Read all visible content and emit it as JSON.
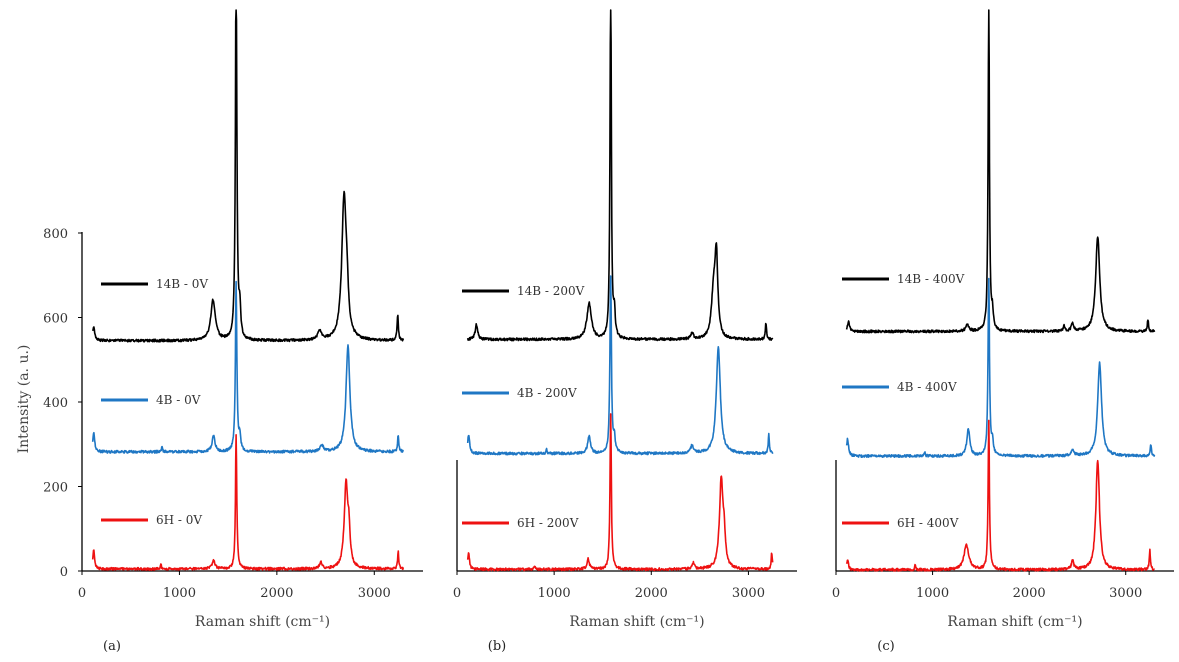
{
  "figure": {
    "y_axis_title": "Intensity (a. u.)"
  },
  "colors": {
    "14B": "#000000",
    "4B": "#1f77c4",
    "6H": "#ee1111"
  },
  "chart_data": [
    {
      "type": "line",
      "panel_label": "(a)",
      "xlabel": "Raman shift (cm⁻¹)",
      "ylabel": "Intensity (a. u.)",
      "xlim": [
        0,
        3500
      ],
      "ylim": [
        0,
        800
      ],
      "x_ticks": [
        0,
        1000,
        2000,
        3000
      ],
      "y_ticks": [
        0,
        200,
        400,
        600,
        800
      ],
      "grid": false,
      "legend_position": "left",
      "x_range": [
        110,
        3300
      ],
      "series": [
        {
          "name": "14B - 0V",
          "color": "#000000",
          "baseline": 545,
          "peaks": [
            [
              120,
              30,
              15
            ],
            [
              1345,
              95,
              28
            ],
            [
              1582,
              900,
              9
            ],
            [
              1620,
              70,
              10
            ],
            [
              2440,
              20,
              25
            ],
            [
              2690,
              340,
              28
            ],
            [
              2720,
              60,
              15
            ],
            [
              3240,
              60,
              8
            ]
          ]
        },
        {
          "name": "4B - 0V",
          "color": "#1f77c4",
          "baseline": 282,
          "peaks": [
            [
              120,
              45,
              12
            ],
            [
              820,
              12,
              6
            ],
            [
              1350,
              38,
              18
            ],
            [
              1582,
              400,
              9
            ],
            [
              1620,
              35,
              10
            ],
            [
              2460,
              16,
              20
            ],
            [
              2730,
              250,
              24
            ],
            [
              3245,
              40,
              7
            ]
          ]
        },
        {
          "name": "6H - 0V",
          "color": "#ee1111",
          "baseline": 5,
          "peaks": [
            [
              120,
              45,
              10
            ],
            [
              810,
              10,
              6
            ],
            [
              1350,
              20,
              18
            ],
            [
              1582,
              320,
              8
            ],
            [
              2450,
              15,
              15
            ],
            [
              2710,
              200,
              22
            ],
            [
              2740,
              70,
              14
            ],
            [
              3245,
              40,
              7
            ]
          ]
        }
      ]
    },
    {
      "type": "line",
      "panel_label": "(b)",
      "xlabel": "Raman shift (cm⁻¹)",
      "ylabel": "",
      "xlim": [
        0,
        3500
      ],
      "ylim": [
        0,
        800
      ],
      "x_ticks": [
        0,
        1000,
        2000,
        3000
      ],
      "y_ticks": [],
      "grid": false,
      "legend_position": "left",
      "x_range": [
        110,
        3250
      ],
      "series": [
        {
          "name": "14B - 200V",
          "color": "#000000",
          "baseline": 548,
          "peaks": [
            [
              200,
              35,
              15
            ],
            [
              1360,
              85,
              28
            ],
            [
              1582,
              870,
              8
            ],
            [
              1620,
              60,
              10
            ],
            [
              2420,
              15,
              15
            ],
            [
              2640,
              100,
              25
            ],
            [
              2670,
              190,
              18
            ],
            [
              3180,
              40,
              7
            ]
          ]
        },
        {
          "name": "4B - 200V",
          "color": "#1f77c4",
          "baseline": 278,
          "peaks": [
            [
              120,
              45,
              12
            ],
            [
              920,
              10,
              6
            ],
            [
              1360,
              40,
              18
            ],
            [
              1582,
              420,
              9
            ],
            [
              1620,
              35,
              10
            ],
            [
              2420,
              18,
              18
            ],
            [
              2690,
              250,
              25
            ],
            [
              3210,
              45,
              7
            ]
          ]
        },
        {
          "name": "6H - 200V",
          "color": "#ee1111",
          "baseline": 4,
          "peaks": [
            [
              120,
              40,
              10
            ],
            [
              800,
              10,
              8
            ],
            [
              1350,
              25,
              15
            ],
            [
              1582,
              370,
              8
            ],
            [
              2430,
              15,
              15
            ],
            [
              2720,
              210,
              22
            ],
            [
              2750,
              60,
              14
            ],
            [
              3240,
              40,
              7
            ]
          ]
        }
      ]
    },
    {
      "type": "line",
      "panel_label": "(c)",
      "xlabel": "Raman shift (cm⁻¹)",
      "ylabel": "",
      "xlim": [
        0,
        3500
      ],
      "ylim": [
        0,
        800
      ],
      "x_ticks": [
        0,
        1000,
        2000,
        3000
      ],
      "y_ticks": [],
      "grid": false,
      "legend_position": "left",
      "x_range": [
        110,
        3300
      ],
      "series": [
        {
          "name": "14B - 400V",
          "color": "#000000",
          "baseline": 567,
          "peaks": [
            [
              130,
              25,
              12
            ],
            [
              1360,
              15,
              20
            ],
            [
              1582,
              790,
              8
            ],
            [
              1620,
              40,
              10
            ],
            [
              2360,
              12,
              10
            ],
            [
              2450,
              18,
              15
            ],
            [
              2710,
              225,
              25
            ],
            [
              3230,
              28,
              7
            ]
          ]
        },
        {
          "name": "4B - 400V",
          "color": "#1f77c4",
          "baseline": 272,
          "peaks": [
            [
              120,
              40,
              12
            ],
            [
              920,
              10,
              6
            ],
            [
              1370,
              65,
              18
            ],
            [
              1582,
              420,
              9
            ],
            [
              1620,
              30,
              10
            ],
            [
              2450,
              12,
              20
            ],
            [
              2730,
              220,
              24
            ],
            [
              3260,
              30,
              7
            ]
          ]
        },
        {
          "name": "6H - 400V",
          "color": "#ee1111",
          "baseline": 3,
          "peaks": [
            [
              120,
              25,
              10
            ],
            [
              820,
              10,
              6
            ],
            [
              1350,
              58,
              30
            ],
            [
              1582,
              350,
              8
            ],
            [
              2450,
              20,
              15
            ],
            [
              2710,
              260,
              22
            ],
            [
              3250,
              45,
              7
            ]
          ]
        }
      ]
    }
  ]
}
